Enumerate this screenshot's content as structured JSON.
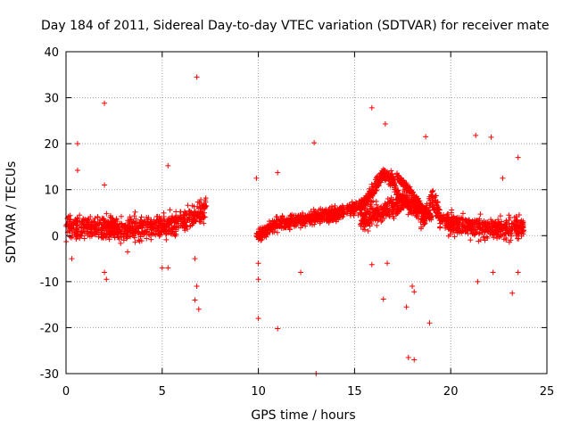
{
  "chart_data": {
    "type": "scatter",
    "title": "Day 184 of 2011, Sidereal Day-to-day VTEC variation (SDTVAR) for receiver mate",
    "xlabel": "GPS time / hours",
    "ylabel": "SDTVAR / TECUs",
    "xlim": [
      0,
      25
    ],
    "ylim": [
      -30,
      40
    ],
    "xticks": [
      0,
      5,
      10,
      15,
      20,
      25
    ],
    "yticks": [
      -30,
      -20,
      -10,
      0,
      10,
      20,
      30,
      40
    ],
    "xtick_labels": [
      "0",
      "5",
      "10",
      "15",
      "20",
      "25"
    ],
    "ytick_labels": [
      "-30",
      "-20",
      "-10",
      "0",
      "10",
      "20",
      "30",
      "40"
    ],
    "grid": true,
    "marker": "+",
    "color": "#ff0000",
    "series": [
      {
        "name": "SDTVAR",
        "segments": [
          {
            "x": [
              0.0,
              1.0,
              2.0,
              3.0,
              4.0,
              5.0,
              6.0,
              6.5,
              7.0,
              7.3
            ],
            "y": [
              1.5,
              1.8,
              1.6,
              1.4,
              1.6,
              2.2,
              3.0,
              3.8,
              5.0,
              6.0
            ],
            "spread": 2.0
          },
          {
            "x": [
              9.9,
              10.5,
              11.0,
              12.0,
              13.0,
              14.0,
              15.0,
              15.5,
              16.0,
              16.5,
              17.0,
              17.3
            ],
            "y": [
              0.0,
              1.5,
              2.5,
              3.2,
              4.0,
              4.8,
              5.8,
              7.0,
              10.0,
              13.5,
              12.0,
              8.0
            ],
            "spread": 1.2
          },
          {
            "x": [
              15.3,
              16.0,
              17.0,
              17.7,
              18.2,
              18.6,
              19.0,
              19.5,
              20.0,
              21.0,
              22.0,
              23.0,
              23.8
            ],
            "y": [
              3.5,
              4.5,
              6.0,
              7.5,
              6.0,
              3.5,
              8.0,
              4.0,
              2.5,
              2.0,
              1.5,
              1.5,
              1.5
            ],
            "spread": 1.8
          },
          {
            "x": [
              17.2,
              17.6,
              18.0,
              18.5,
              19.0
            ],
            "y": [
              13.0,
              11.0,
              9.0,
              6.0,
              4.0
            ],
            "spread": 0.8
          }
        ],
        "outliers": [
          {
            "x": 6.8,
            "y": 34.5
          },
          {
            "x": 2.0,
            "y": 28.8
          },
          {
            "x": 15.9,
            "y": 27.8
          },
          {
            "x": 16.6,
            "y": 24.3
          },
          {
            "x": 0.6,
            "y": 20.0
          },
          {
            "x": 12.9,
            "y": 20.2
          },
          {
            "x": 18.7,
            "y": 21.5
          },
          {
            "x": 21.3,
            "y": 21.8
          },
          {
            "x": 22.1,
            "y": 21.4
          },
          {
            "x": 5.3,
            "y": 15.2
          },
          {
            "x": 23.5,
            "y": 17.0
          },
          {
            "x": 0.6,
            "y": 14.2
          },
          {
            "x": 11.0,
            "y": 13.7
          },
          {
            "x": 9.9,
            "y": 12.5
          },
          {
            "x": 2.0,
            "y": 11.0
          },
          {
            "x": 22.7,
            "y": 12.5
          },
          {
            "x": 2.0,
            "y": -8.0
          },
          {
            "x": 2.1,
            "y": -9.5
          },
          {
            "x": 5.0,
            "y": -7.0
          },
          {
            "x": 5.3,
            "y": -7.0
          },
          {
            "x": 6.8,
            "y": -11.0
          },
          {
            "x": 6.7,
            "y": -14.0
          },
          {
            "x": 6.9,
            "y": -16.0
          },
          {
            "x": 6.7,
            "y": -5.0
          },
          {
            "x": 10.0,
            "y": -9.5
          },
          {
            "x": 10.0,
            "y": -6.0
          },
          {
            "x": 10.0,
            "y": -18.0
          },
          {
            "x": 11.0,
            "y": -20.2
          },
          {
            "x": 13.0,
            "y": -30.0
          },
          {
            "x": 12.2,
            "y": -8.0
          },
          {
            "x": 15.9,
            "y": -6.3
          },
          {
            "x": 16.5,
            "y": -13.8
          },
          {
            "x": 16.7,
            "y": -6.0
          },
          {
            "x": 17.7,
            "y": -15.5
          },
          {
            "x": 17.8,
            "y": -26.5
          },
          {
            "x": 18.1,
            "y": -27.0
          },
          {
            "x": 18.9,
            "y": -19.0
          },
          {
            "x": 18.0,
            "y": -11.0
          },
          {
            "x": 18.1,
            "y": -12.2
          },
          {
            "x": 21.4,
            "y": -10.0
          },
          {
            "x": 22.2,
            "y": -8.0
          },
          {
            "x": 23.2,
            "y": -12.5
          },
          {
            "x": 23.5,
            "y": -8.0
          },
          {
            "x": 0.3,
            "y": -5.0
          },
          {
            "x": 3.2,
            "y": -3.5
          }
        ]
      }
    ]
  }
}
